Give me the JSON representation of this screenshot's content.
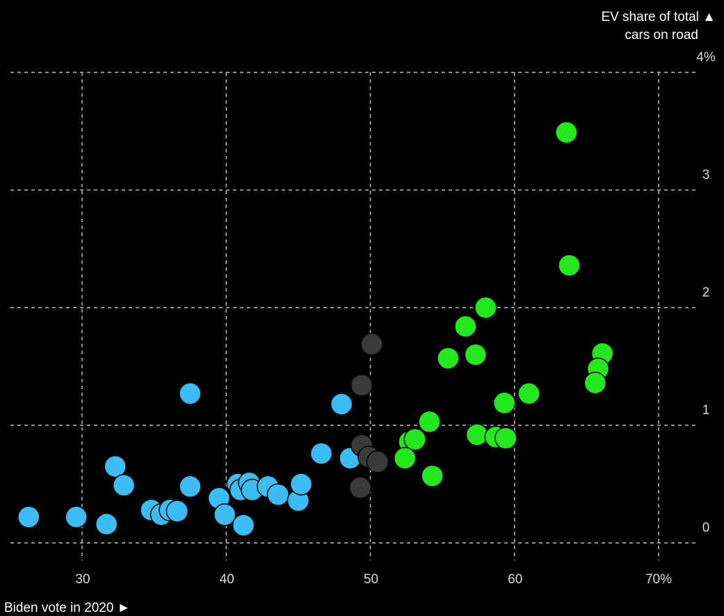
{
  "chart_data": {
    "type": "scatter",
    "title": "",
    "xlabel": "Biden vote in 2020 ►",
    "ylabel_lines": [
      "EV share of total ▲",
      "cars on road"
    ],
    "xlim": [
      25,
      71
    ],
    "ylim": [
      -0.1,
      4
    ],
    "x_ticks": [
      {
        "value": 30,
        "label": "30"
      },
      {
        "value": 40,
        "label": "40"
      },
      {
        "value": 50,
        "label": "50"
      },
      {
        "value": 60,
        "label": "60"
      },
      {
        "value": 70,
        "label": "70%"
      }
    ],
    "y_ticks": [
      {
        "value": 0,
        "label": "0"
      },
      {
        "value": 1,
        "label": "1"
      },
      {
        "value": 2,
        "label": "2"
      },
      {
        "value": 3,
        "label": "3"
      },
      {
        "value": 4,
        "label": "4%"
      }
    ],
    "grid": true,
    "colors": {
      "background": "#000000",
      "grid": "#bdbdbd",
      "text": "#ffffff",
      "blue": "#3cbcf5",
      "gray": "#3a3a3a",
      "green": "#23e81d"
    },
    "series": [
      {
        "color_key": "blue",
        "points": [
          [
            26.3,
            0.22
          ],
          [
            29.6,
            0.22
          ],
          [
            31.7,
            0.16
          ],
          [
            32.3,
            0.65
          ],
          [
            32.9,
            0.49
          ],
          [
            34.8,
            0.28
          ],
          [
            35.5,
            0.24
          ],
          [
            36.1,
            0.28
          ],
          [
            36.6,
            0.27
          ],
          [
            37.5,
            1.27
          ],
          [
            37.5,
            0.48
          ],
          [
            39.5,
            0.38
          ],
          [
            39.9,
            0.24
          ],
          [
            40.8,
            0.5
          ],
          [
            41.0,
            0.45
          ],
          [
            41.2,
            0.15
          ],
          [
            41.6,
            0.51
          ],
          [
            41.8,
            0.45
          ],
          [
            42.9,
            0.48
          ],
          [
            43.6,
            0.41
          ],
          [
            45.0,
            0.36
          ],
          [
            45.2,
            0.5
          ],
          [
            46.6,
            0.76
          ],
          [
            48.0,
            1.18
          ],
          [
            48.6,
            0.72
          ]
        ]
      },
      {
        "color_key": "gray",
        "points": [
          [
            50.1,
            1.69
          ],
          [
            49.4,
            1.34
          ],
          [
            49.4,
            0.83
          ],
          [
            49.9,
            0.73
          ],
          [
            50.5,
            0.69
          ],
          [
            49.3,
            0.47
          ]
        ]
      },
      {
        "color_key": "green",
        "points": [
          [
            63.6,
            3.49
          ],
          [
            63.8,
            2.36
          ],
          [
            58.0,
            2.0
          ],
          [
            56.6,
            1.84
          ],
          [
            55.4,
            1.57
          ],
          [
            57.3,
            1.6
          ],
          [
            66.1,
            1.61
          ],
          [
            65.8,
            1.48
          ],
          [
            65.6,
            1.36
          ],
          [
            61.0,
            1.27
          ],
          [
            59.3,
            1.19
          ],
          [
            54.1,
            1.03
          ],
          [
            52.7,
            0.86
          ],
          [
            53.1,
            0.88
          ],
          [
            57.4,
            0.92
          ],
          [
            58.7,
            0.9
          ],
          [
            59.4,
            0.89
          ],
          [
            52.4,
            0.72
          ],
          [
            54.3,
            0.57
          ]
        ]
      }
    ]
  }
}
